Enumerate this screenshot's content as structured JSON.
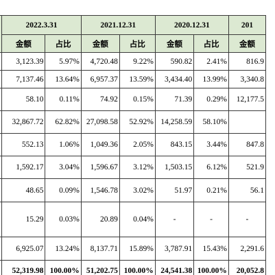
{
  "periods": [
    "2022.3.31",
    "2021.12.31",
    "2020.12.31",
    "201"
  ],
  "sub_headers": {
    "amount": "金额",
    "ratio": "占比"
  },
  "rows": [
    {
      "cells": [
        "3,123.39",
        "5.97%",
        "4,720.48",
        "9.22%",
        "590.82",
        "2.41%",
        "816.9"
      ]
    },
    {
      "cells": [
        "7,137.46",
        "13.64%",
        "6,957.37",
        "13.59%",
        "3,434.40",
        "13.99%",
        "3,340.8"
      ]
    },
    {
      "cells": [
        "58.10",
        "0.11%",
        "74.92",
        "0.15%",
        "71.39",
        "0.29%",
        "12,177.5"
      ]
    },
    {
      "cells": [
        "32,867.72",
        "62.82%",
        "27,098.58",
        "52.92%",
        "14,258.59",
        "58.10%",
        ""
      ]
    },
    {
      "cells": [
        "552.13",
        "1.06%",
        "1,049.36",
        "2.05%",
        "843.15",
        "3.44%",
        "847.8"
      ]
    },
    {
      "cells": [
        "1,592.17",
        "3.04%",
        "1,596.67",
        "3.12%",
        "1,503.15",
        "6.12%",
        "521.9"
      ]
    },
    {
      "cells": [
        "48.65",
        "0.09%",
        "1,546.78",
        "3.02%",
        "51.97",
        "0.21%",
        "56.1"
      ]
    },
    {
      "cells": [
        "15.29",
        "0.03%",
        "20.89",
        "0.04%",
        "-",
        "-",
        "-"
      ]
    },
    {
      "cells": [
        "6,925.07",
        "13.24%",
        "8,137.71",
        "15.89%",
        "3,787.91",
        "15.43%",
        "2,291.6"
      ]
    },
    {
      "cells": [
        "52,319.98",
        "100.00%",
        "51,202.75",
        "100.00%",
        "24,541.38",
        "100.00%",
        "20,052.8"
      ]
    }
  ]
}
